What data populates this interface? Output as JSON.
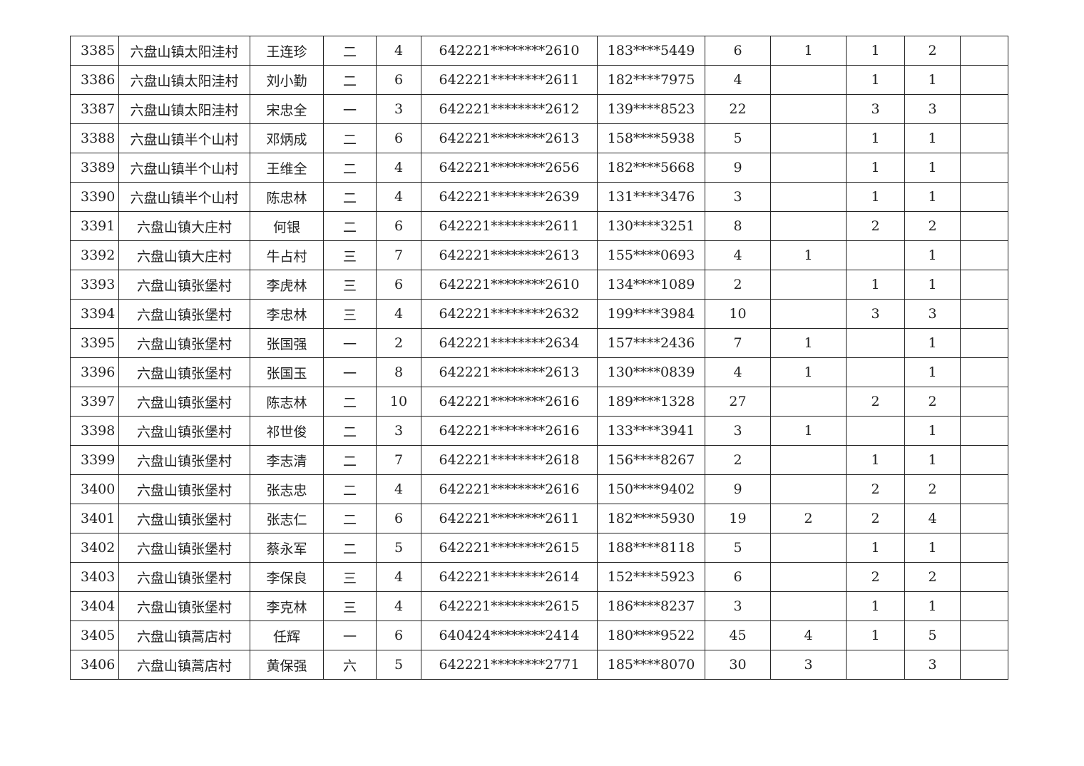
{
  "table": {
    "rows": [
      [
        "3385",
        "六盘山镇太阳洼村",
        "王连珍",
        "二",
        "4",
        "642221********2610",
        "183****5449",
        "6",
        "1",
        "1",
        "2",
        ""
      ],
      [
        "3386",
        "六盘山镇太阳洼村",
        "刘小勤",
        "二",
        "6",
        "642221********2611",
        "182****7975",
        "4",
        "",
        "1",
        "1",
        ""
      ],
      [
        "3387",
        "六盘山镇太阳洼村",
        "宋忠全",
        "一",
        "3",
        "642221********2612",
        "139****8523",
        "22",
        "",
        "3",
        "3",
        ""
      ],
      [
        "3388",
        "六盘山镇半个山村",
        "邓炳成",
        "二",
        "6",
        "642221********2613",
        "158****5938",
        "5",
        "",
        "1",
        "1",
        ""
      ],
      [
        "3389",
        "六盘山镇半个山村",
        "王维全",
        "二",
        "4",
        "642221********2656",
        "182****5668",
        "9",
        "",
        "1",
        "1",
        ""
      ],
      [
        "3390",
        "六盘山镇半个山村",
        "陈忠林",
        "二",
        "4",
        "642221********2639",
        "131****3476",
        "3",
        "",
        "1",
        "1",
        ""
      ],
      [
        "3391",
        "六盘山镇大庄村",
        "何银",
        "二",
        "6",
        "642221********2611",
        "130****3251",
        "8",
        "",
        "2",
        "2",
        ""
      ],
      [
        "3392",
        "六盘山镇大庄村",
        "牛占村",
        "三",
        "7",
        "642221********2613",
        "155****0693",
        "4",
        "1",
        "",
        "1",
        ""
      ],
      [
        "3393",
        "六盘山镇张堡村",
        "李虎林",
        "三",
        "6",
        "642221********2610",
        "134****1089",
        "2",
        "",
        "1",
        "1",
        ""
      ],
      [
        "3394",
        "六盘山镇张堡村",
        "李忠林",
        "三",
        "4",
        "642221********2632",
        "199****3984",
        "10",
        "",
        "3",
        "3",
        ""
      ],
      [
        "3395",
        "六盘山镇张堡村",
        "张国强",
        "一",
        "2",
        "642221********2634",
        "157****2436",
        "7",
        "1",
        "",
        "1",
        ""
      ],
      [
        "3396",
        "六盘山镇张堡村",
        "张国玉",
        "一",
        "8",
        "642221********2613",
        "130****0839",
        "4",
        "1",
        "",
        "1",
        ""
      ],
      [
        "3397",
        "六盘山镇张堡村",
        "陈志林",
        "二",
        "10",
        "642221********2616",
        "189****1328",
        "27",
        "",
        "2",
        "2",
        ""
      ],
      [
        "3398",
        "六盘山镇张堡村",
        "祁世俊",
        "二",
        "3",
        "642221********2616",
        "133****3941",
        "3",
        "1",
        "",
        "1",
        ""
      ],
      [
        "3399",
        "六盘山镇张堡村",
        "李志清",
        "二",
        "7",
        "642221********2618",
        "156****8267",
        "2",
        "",
        "1",
        "1",
        ""
      ],
      [
        "3400",
        "六盘山镇张堡村",
        "张志忠",
        "二",
        "4",
        "642221********2616",
        "150****9402",
        "9",
        "",
        "2",
        "2",
        ""
      ],
      [
        "3401",
        "六盘山镇张堡村",
        "张志仁",
        "二",
        "6",
        "642221********2611",
        "182****5930",
        "19",
        "2",
        "2",
        "4",
        ""
      ],
      [
        "3402",
        "六盘山镇张堡村",
        "蔡永军",
        "二",
        "5",
        "642221********2615",
        "188****8118",
        "5",
        "",
        "1",
        "1",
        ""
      ],
      [
        "3403",
        "六盘山镇张堡村",
        "李保良",
        "三",
        "4",
        "642221********2614",
        "152****5923",
        "6",
        "",
        "2",
        "2",
        ""
      ],
      [
        "3404",
        "六盘山镇张堡村",
        "李克林",
        "三",
        "4",
        "642221********2615",
        "186****8237",
        "3",
        "",
        "1",
        "1",
        ""
      ],
      [
        "3405",
        "六盘山镇蒿店村",
        "任辉",
        "一",
        "6",
        "640424********2414",
        "180****9522",
        "45",
        "4",
        "1",
        "5",
        ""
      ],
      [
        "3406",
        "六盘山镇蒿店村",
        "黄保强",
        "六",
        "5",
        "642221********2771",
        "185****8070",
        "30",
        "3",
        "",
        "3",
        ""
      ]
    ]
  }
}
